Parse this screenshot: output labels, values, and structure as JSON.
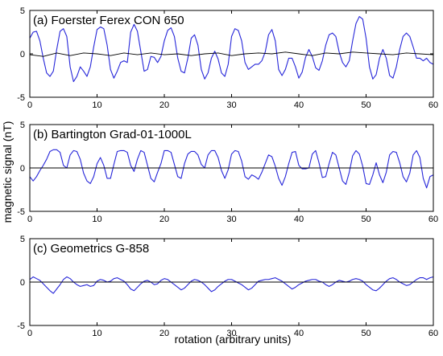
{
  "figure": {
    "ylabel": "magnetic signal (nT)",
    "xlabel": "rotation (arbitrary units)"
  },
  "colors": {
    "signal": "#2626d9",
    "baseline": "#000000",
    "frame": "#000000"
  },
  "chart_data": [
    {
      "type": "line",
      "title": "(a) Foerster Ferex  CON 650",
      "xlim": [
        0,
        60
      ],
      "ylim": [
        -5,
        5
      ],
      "xticks": [
        0,
        10,
        20,
        30,
        40,
        50,
        60
      ],
      "yticks": [
        -5,
        0,
        5
      ],
      "series": [
        {
          "x": [
            0,
            0.5,
            1,
            1.5,
            2,
            2.5,
            3,
            3.5,
            4,
            4.5,
            5,
            5.5,
            6,
            6.5,
            7,
            7.5,
            8,
            8.5,
            9,
            9.5,
            10,
            10.5,
            11,
            11.5,
            12,
            12.5,
            13,
            13.5,
            14,
            14.5,
            15,
            15.5,
            16,
            16.5,
            17,
            17.5,
            18,
            18.5,
            19,
            19.5,
            20,
            20.5,
            21,
            21.5,
            22,
            22.5,
            23,
            23.5,
            24,
            24.5,
            25,
            25.5,
            26,
            26.5,
            27,
            27.5,
            28,
            28.5,
            29,
            29.5,
            30,
            30.5,
            31,
            31.5,
            32,
            32.5,
            33,
            33.5,
            34,
            34.5,
            35,
            35.5,
            36,
            36.5,
            37,
            37.5,
            38,
            38.5,
            39,
            39.5,
            40,
            40.5,
            41,
            41.5,
            42,
            42.5,
            43,
            43.5,
            44,
            44.5,
            45,
            45.5,
            46,
            46.5,
            47,
            47.5,
            48,
            48.5,
            49,
            49.5,
            50,
            50.5,
            51,
            51.5,
            52,
            52.5,
            53,
            53.5,
            54,
            54.5,
            55,
            55.5,
            56,
            56.5,
            57,
            57.5,
            58,
            58.5,
            59,
            59.5,
            60
          ],
          "y": [
            1.8,
            2.5,
            2.6,
            1.5,
            -0.5,
            -2.2,
            -2.6,
            -2.0,
            0.5,
            2.6,
            2.9,
            2.0,
            -1.5,
            -3.2,
            -2.6,
            -1.5,
            -2.0,
            -2.6,
            -1.5,
            0.8,
            2.8,
            3.1,
            2.9,
            1.0,
            -1.8,
            -2.8,
            -2.0,
            -1.0,
            -0.8,
            -1.0,
            2.5,
            3.4,
            2.6,
            0.3,
            -2.0,
            -1.8,
            -0.3,
            -0.4,
            -1.0,
            -0.3,
            1.5,
            2.7,
            3.0,
            2.0,
            -0.5,
            -2.0,
            -2.2,
            -0.5,
            1.8,
            2.2,
            1.0,
            -1.8,
            -2.9,
            -2.2,
            -0.5,
            0.3,
            -0.6,
            -2.2,
            -2.6,
            -1.2,
            2.0,
            2.9,
            2.7,
            1.5,
            -1.0,
            -1.8,
            -1.5,
            -1.2,
            -1.2,
            -0.8,
            0.2,
            2.2,
            2.8,
            1.5,
            -1.8,
            -2.5,
            -1.8,
            -0.5,
            -0.5,
            -1.5,
            -2.8,
            -2.1,
            -0.4,
            0.5,
            -0.3,
            -1.6,
            -1.9,
            -0.8,
            1.0,
            2.2,
            2.4,
            2.0,
            0.2,
            -1.0,
            -1.5,
            -0.8,
            1.5,
            3.5,
            4.3,
            4.0,
            1.8,
            -1.5,
            -2.9,
            -2.4,
            -0.5,
            0.5,
            -0.5,
            -2.5,
            -2.8,
            -1.5,
            0.5,
            2.0,
            2.4,
            2.0,
            0.8,
            -0.5,
            -0.5,
            -0.8,
            -0.5,
            -1.0,
            -1.2
          ],
          "color": "#2626d9"
        },
        {
          "x": [
            0,
            2,
            4,
            6,
            8,
            10,
            12,
            14,
            16,
            18,
            20,
            22,
            24,
            26,
            28,
            30,
            32,
            34,
            36,
            38,
            40,
            42,
            44,
            46,
            48,
            50,
            52,
            54,
            56,
            58,
            60
          ],
          "y": [
            -0.1,
            -0.3,
            0.1,
            -0.2,
            0.1,
            0.0,
            -0.2,
            0.1,
            -0.1,
            0.1,
            -0.1,
            0.0,
            -0.2,
            0.0,
            0.1,
            -0.2,
            0.0,
            0.1,
            0.0,
            0.2,
            0.0,
            -0.2,
            0.1,
            0.0,
            0.2,
            0.1,
            0.0,
            -0.1,
            0.1,
            0.0,
            -0.1
          ],
          "color": "#000000"
        }
      ]
    },
    {
      "type": "line",
      "title": "(b) Bartington Grad-01-1000L",
      "xlim": [
        0,
        60
      ],
      "ylim": [
        -5,
        5
      ],
      "xticks": [
        0,
        10,
        20,
        30,
        40,
        50,
        60
      ],
      "yticks": [
        -5,
        0,
        5
      ],
      "series": [
        {
          "x": [
            0,
            0.5,
            1,
            1.5,
            2,
            2.5,
            3,
            3.5,
            4,
            4.5,
            5,
            5.5,
            6,
            6.5,
            7,
            7.5,
            8,
            8.5,
            9,
            9.5,
            10,
            10.5,
            11,
            11.5,
            12,
            12.5,
            13,
            13.5,
            14,
            14.5,
            15,
            15.5,
            16,
            16.5,
            17,
            17.5,
            18,
            18.5,
            19,
            19.5,
            20,
            20.5,
            21,
            21.5,
            22,
            22.5,
            23,
            23.5,
            24,
            24.5,
            25,
            25.5,
            26,
            26.5,
            27,
            27.5,
            28,
            28.5,
            29,
            29.5,
            30,
            30.5,
            31,
            31.5,
            32,
            32.5,
            33,
            33.5,
            34,
            34.5,
            35,
            35.5,
            36,
            36.5,
            37,
            37.5,
            38,
            38.5,
            39,
            39.5,
            40,
            40.5,
            41,
            41.5,
            42,
            42.5,
            43,
            43.5,
            44,
            44.5,
            45,
            45.5,
            46,
            46.5,
            47,
            47.5,
            48,
            48.5,
            49,
            49.5,
            50,
            50.5,
            51,
            51.5,
            52,
            52.5,
            53,
            53.5,
            54,
            54.5,
            55,
            55.5,
            56,
            56.5,
            57,
            57.5,
            58,
            58.5,
            59,
            59.5,
            60
          ],
          "y": [
            -1.0,
            -1.5,
            -1.0,
            -0.3,
            0.3,
            1.0,
            1.9,
            2.1,
            2.1,
            1.8,
            0.3,
            0.0,
            1.5,
            2.0,
            1.9,
            1.0,
            -0.6,
            -1.5,
            -1.8,
            -1.0,
            0.5,
            1.2,
            0.3,
            -1.2,
            -1.2,
            0.4,
            1.9,
            2.0,
            2.0,
            1.8,
            0.3,
            -0.4,
            1.0,
            2.0,
            1.8,
            0.3,
            -1.2,
            -1.6,
            -0.5,
            0.5,
            2.0,
            2.0,
            1.8,
            0.4,
            -1.0,
            -1.2,
            0.5,
            1.6,
            1.9,
            1.9,
            1.5,
            0.4,
            0.0,
            1.5,
            2.0,
            2.0,
            1.2,
            -0.3,
            -1.2,
            -0.2,
            1.6,
            2.0,
            1.9,
            0.8,
            -1.0,
            -1.3,
            -0.8,
            -1.0,
            -1.3,
            -0.5,
            0.5,
            1.5,
            1.3,
            0.2,
            -1.2,
            -2.0,
            -1.0,
            0.5,
            1.8,
            1.9,
            0.3,
            -0.1,
            -0.1,
            0.0,
            1.6,
            2.0,
            0.6,
            -1.1,
            -1.0,
            0.5,
            1.8,
            1.5,
            0.0,
            -1.5,
            -1.9,
            -0.5,
            1.4,
            2.0,
            1.6,
            0.2,
            -1.8,
            -1.9,
            -0.8,
            0.6,
            -0.8,
            -1.7,
            -0.5,
            1.5,
            1.9,
            1.8,
            0.6,
            -1.0,
            -1.6,
            -0.6,
            1.5,
            2.0,
            1.2,
            -1.2,
            -2.3,
            -1.0,
            -0.8
          ],
          "color": "#2626d9"
        },
        {
          "x": [
            0,
            60
          ],
          "y": [
            0,
            0
          ],
          "color": "#000000"
        }
      ]
    },
    {
      "type": "line",
      "title": "(c) Geometrics G-858",
      "xlim": [
        0,
        60
      ],
      "ylim": [
        -5,
        5
      ],
      "xticks": [
        0,
        10,
        20,
        30,
        40,
        50,
        60
      ],
      "yticks": [
        -5,
        0,
        5
      ],
      "series": [
        {
          "x": [
            0,
            0.5,
            1,
            1.5,
            2,
            2.5,
            3,
            3.5,
            4,
            4.5,
            5,
            5.5,
            6,
            6.5,
            7,
            7.5,
            8,
            8.5,
            9,
            9.5,
            10,
            10.5,
            11,
            11.5,
            12,
            12.5,
            13,
            13.5,
            14,
            14.5,
            15,
            15.5,
            16,
            16.5,
            17,
            17.5,
            18,
            18.5,
            19,
            19.5,
            20,
            20.5,
            21,
            21.5,
            22,
            22.5,
            23,
            23.5,
            24,
            24.5,
            25,
            25.5,
            26,
            26.5,
            27,
            27.5,
            28,
            28.5,
            29,
            29.5,
            30,
            30.5,
            31,
            31.5,
            32,
            32.5,
            33,
            33.5,
            34,
            34.5,
            35,
            35.5,
            36,
            36.5,
            37,
            37.5,
            38,
            38.5,
            39,
            39.5,
            40,
            40.5,
            41,
            41.5,
            42,
            42.5,
            43,
            43.5,
            44,
            44.5,
            45,
            45.5,
            46,
            46.5,
            47,
            47.5,
            48,
            48.5,
            49,
            49.5,
            50,
            50.5,
            51,
            51.5,
            52,
            52.5,
            53,
            53.5,
            54,
            54.5,
            55,
            55.5,
            56,
            56.5,
            57,
            57.5,
            58,
            58.5,
            59,
            59.5,
            60
          ],
          "y": [
            0.3,
            0.6,
            0.4,
            0.2,
            -0.2,
            -0.6,
            -1.0,
            -1.3,
            -0.8,
            -0.3,
            0.3,
            0.6,
            0.4,
            0.0,
            -0.3,
            -0.5,
            -0.4,
            -0.3,
            -0.5,
            -0.4,
            0.1,
            0.3,
            0.2,
            0.0,
            0.1,
            0.4,
            0.5,
            0.3,
            0.1,
            -0.3,
            -0.8,
            -1.0,
            -0.6,
            -0.2,
            0.1,
            0.2,
            0.0,
            -0.3,
            -0.2,
            0.2,
            0.4,
            0.3,
            0.0,
            -0.3,
            -0.6,
            -0.9,
            -0.7,
            -0.3,
            0.1,
            0.3,
            0.2,
            0.0,
            -0.3,
            -0.7,
            -1.1,
            -0.9,
            -0.5,
            -0.2,
            0.1,
            0.3,
            0.3,
            0.1,
            -0.1,
            -0.3,
            -0.6,
            -0.9,
            -0.7,
            -0.3,
            0.1,
            0.2,
            0.3,
            0.3,
            0.4,
            0.5,
            0.3,
            0.1,
            -0.2,
            -0.5,
            -0.8,
            -0.6,
            -0.3,
            -0.1,
            0.1,
            0.2,
            0.3,
            0.3,
            0.1,
            0.0,
            -0.3,
            -0.5,
            -0.3,
            0.0,
            0.2,
            0.1,
            0.0,
            0.1,
            0.3,
            0.4,
            0.3,
            0.1,
            -0.3,
            -0.6,
            -0.9,
            -1.0,
            -0.7,
            -0.3,
            0.1,
            0.4,
            0.5,
            0.3,
            0.0,
            -0.2,
            -0.4,
            -0.3,
            0.0,
            0.3,
            0.5,
            0.5,
            0.3,
            0.5,
            0.6
          ],
          "color": "#2626d9"
        },
        {
          "x": [
            0,
            60
          ],
          "y": [
            0,
            0
          ],
          "color": "#000000"
        }
      ]
    }
  ]
}
